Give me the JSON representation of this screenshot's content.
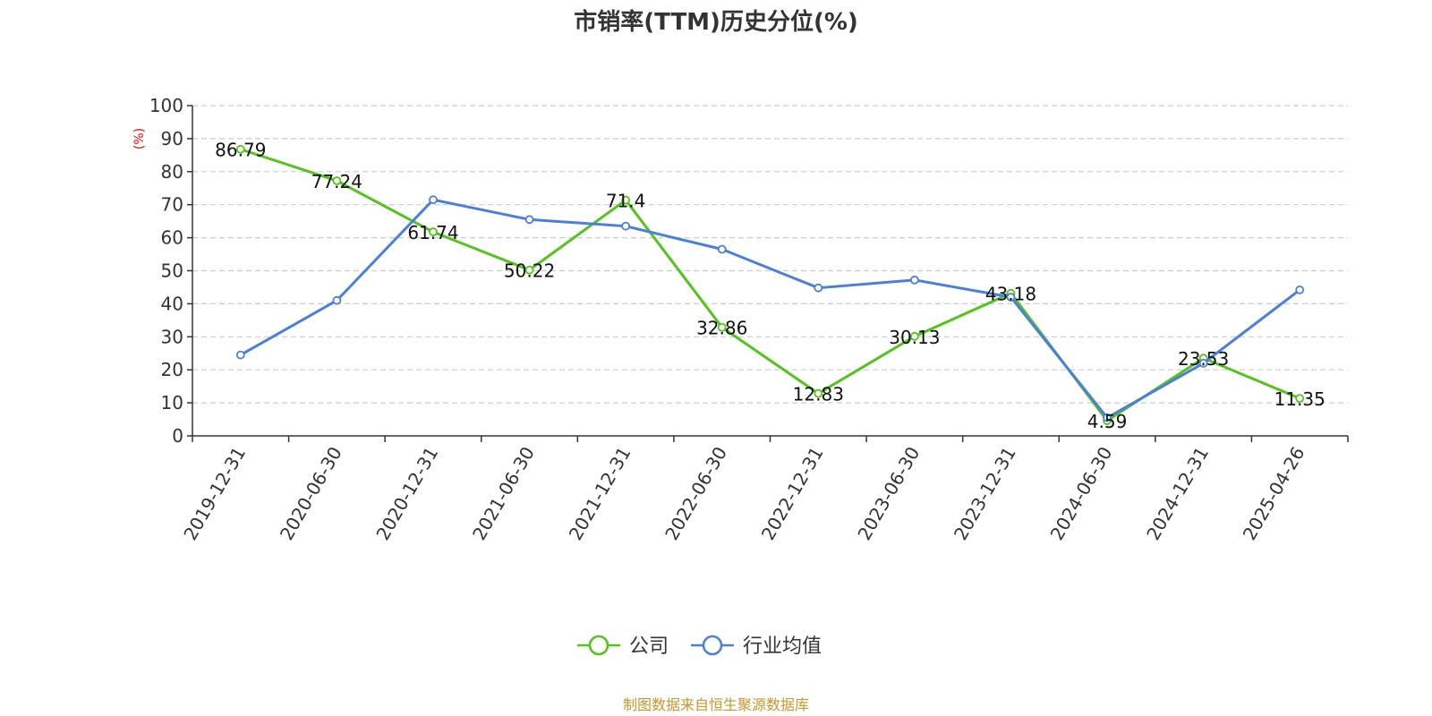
{
  "chart_data": {
    "type": "line",
    "title": "市销率(TTM)历史分位(%)",
    "ylabel": "(%)",
    "xlabel": "",
    "ylim": [
      0,
      100
    ],
    "yticks": [
      0,
      10,
      20,
      30,
      40,
      50,
      60,
      70,
      80,
      90,
      100
    ],
    "categories": [
      "2019-12-31",
      "2020-06-30",
      "2020-12-31",
      "2021-06-30",
      "2021-12-31",
      "2022-06-30",
      "2022-12-31",
      "2023-06-30",
      "2023-12-31",
      "2024-06-30",
      "2024-12-31",
      "2025-04-26"
    ],
    "grid": true,
    "legend_position": "bottom",
    "series": [
      {
        "name": "公司",
        "color": "#52c41a",
        "values": [
          86.79,
          77.24,
          61.74,
          50.22,
          71.4,
          32.86,
          12.83,
          30.13,
          43.18,
          4.59,
          23.53,
          11.35
        ],
        "labels": [
          "86.79",
          "77.24",
          "61.74",
          "50.22",
          "71.4",
          "32.86",
          "12.83",
          "30.13",
          "43.18",
          "4.59",
          "23.53",
          "11.35"
        ]
      },
      {
        "name": "行业均值",
        "color": "#4a7fdc",
        "values": [
          24.5,
          41.0,
          71.5,
          65.5,
          63.5,
          56.5,
          44.8,
          47.2,
          42.0,
          5.5,
          22.0,
          44.2
        ]
      }
    ]
  },
  "footer": {
    "source": "制图数据来自恒生聚源数据库"
  }
}
